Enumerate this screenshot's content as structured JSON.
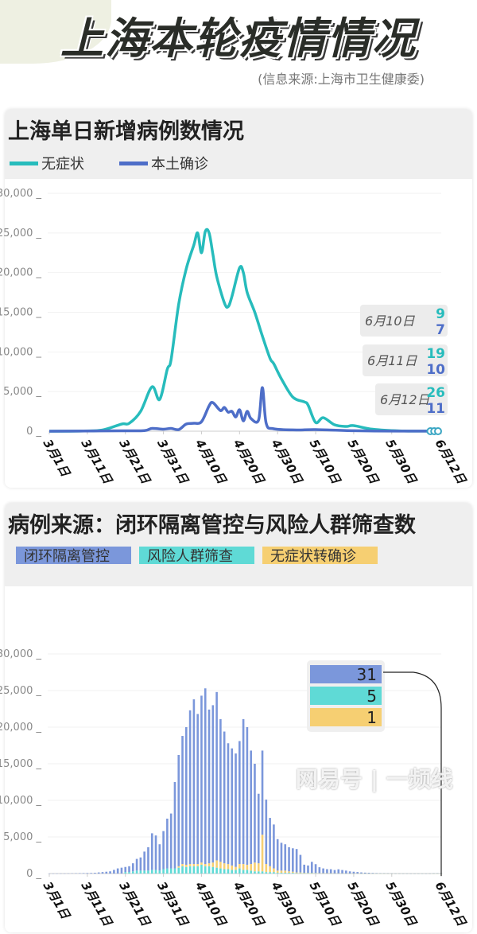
{
  "header": {
    "title": "上海本轮疫情情况",
    "source": "(信息来源:上海市卫生健康委)"
  },
  "colors": {
    "asymptomatic": "#27bcbc",
    "confirmed": "#4e6ec8",
    "closed_loop": "#7b97db",
    "screening": "#5fdad6",
    "converted": "#f6cf72"
  },
  "chart1": {
    "title": "上海单日新增病例数情况",
    "legend": [
      "无症状",
      "本土确诊"
    ],
    "annotations": [
      {
        "date": "6月10日",
        "asymptomatic": "9",
        "confirmed": "7"
      },
      {
        "date": "6月11日",
        "asymptomatic": "19",
        "confirmed": "10"
      },
      {
        "date": "6月12日",
        "asymptomatic": "26",
        "confirmed": "11"
      }
    ]
  },
  "chart2": {
    "title": "病例来源：闭环隔离管控与风险人群筛查数",
    "legend": [
      "闭环隔离管控",
      "风险人群筛查",
      "无症状转确诊"
    ],
    "callout": [
      "31",
      "5",
      "1"
    ]
  },
  "watermark": "网易号 | 一频线",
  "chart_data": [
    {
      "type": "line",
      "title": "上海单日新增病例数情况",
      "ylim": [
        0,
        30000
      ],
      "yticks": [
        "30,000",
        "25,000",
        "20,000",
        "15,000",
        "10,000",
        "5,000",
        "0"
      ],
      "xticks": [
        "3月1日",
        "3月11日",
        "3月21日",
        "3月31日",
        "4月10日",
        "4月20日",
        "4月30日",
        "5月10日",
        "5月20日",
        "5月30日",
        "6月12日"
      ],
      "grid": true,
      "legend_position": "top-left",
      "series": [
        {
          "name": "无症状",
          "points": [
            [
              "3-1",
              0
            ],
            [
              "3-10",
              30
            ],
            [
              "3-15",
              150
            ],
            [
              "3-20",
              900
            ],
            [
              "3-22",
              1000
            ],
            [
              "3-25",
              2500
            ],
            [
              "3-28",
              5600
            ],
            [
              "3-30",
              4000
            ],
            [
              "4-1",
              7800
            ],
            [
              "4-2",
              9000
            ],
            [
              "4-4",
              16000
            ],
            [
              "4-6",
              20500
            ],
            [
              "4-8",
              23500
            ],
            [
              "4-9",
              25000
            ],
            [
              "4-10",
              22500
            ],
            [
              "4-11",
              25200
            ],
            [
              "4-12",
              25000
            ],
            [
              "4-13",
              22300
            ],
            [
              "4-14",
              19500
            ],
            [
              "4-16",
              16200
            ],
            [
              "4-17",
              15700
            ],
            [
              "4-18",
              17000
            ],
            [
              "4-20",
              20600
            ],
            [
              "4-21",
              20000
            ],
            [
              "4-22",
              17500
            ],
            [
              "4-24",
              15000
            ],
            [
              "4-26",
              12000
            ],
            [
              "4-28",
              9200
            ],
            [
              "4-29",
              8500
            ],
            [
              "5-1",
              6600
            ],
            [
              "5-4",
              4300
            ],
            [
              "5-7",
              3700
            ],
            [
              "5-8",
              3300
            ],
            [
              "5-10",
              1100
            ],
            [
              "5-12",
              1700
            ],
            [
              "5-15",
              800
            ],
            [
              "5-18",
              600
            ],
            [
              "5-20",
              700
            ],
            [
              "5-25",
              250
            ],
            [
              "6-1",
              40
            ],
            [
              "6-10",
              9
            ],
            [
              "6-11",
              19
            ],
            [
              "6-12",
              26
            ]
          ]
        },
        {
          "name": "本土确诊",
          "points": [
            [
              "3-1",
              0
            ],
            [
              "3-20",
              50
            ],
            [
              "3-26",
              80
            ],
            [
              "3-28",
              350
            ],
            [
              "3-31",
              250
            ],
            [
              "4-2",
              350
            ],
            [
              "4-4",
              200
            ],
            [
              "4-6",
              900
            ],
            [
              "4-8",
              1000
            ],
            [
              "4-10",
              1200
            ],
            [
              "4-12",
              3200
            ],
            [
              "4-13",
              3600
            ],
            [
              "4-15",
              2600
            ],
            [
              "4-16",
              3000
            ],
            [
              "4-17",
              2400
            ],
            [
              "4-18",
              2500
            ],
            [
              "4-19",
              1800
            ],
            [
              "4-20",
              2700
            ],
            [
              "4-21",
              1300
            ],
            [
              "4-22",
              2500
            ],
            [
              "4-23",
              1600
            ],
            [
              "4-25",
              1400
            ],
            [
              "4-26",
              5500
            ],
            [
              "4-27",
              1000
            ],
            [
              "4-29",
              300
            ],
            [
              "5-5",
              150
            ],
            [
              "5-10",
              200
            ],
            [
              "5-20",
              60
            ],
            [
              "6-1",
              10
            ],
            [
              "6-10",
              7
            ],
            [
              "6-11",
              10
            ],
            [
              "6-12",
              11
            ]
          ]
        }
      ]
    },
    {
      "type": "bar",
      "stacked": true,
      "title": "病例来源：闭环隔离管控与风险人群筛查数",
      "ylim": [
        0,
        30000
      ],
      "yticks": [
        "30,000",
        "25,000",
        "20,000",
        "15,000",
        "10,000",
        "5,000",
        "0"
      ],
      "xticks": [
        "3月1日",
        "3月11日",
        "3月21日",
        "3月31日",
        "4月10日",
        "4月20日",
        "4月30日",
        "5月10日",
        "5月20日",
        "5月30日",
        "6月12日"
      ],
      "start_date": "3-1",
      "series": [
        {
          "name": "闭环隔离管控",
          "values": [
            2,
            3,
            5,
            10,
            10,
            20,
            30,
            40,
            50,
            60,
            70,
            80,
            100,
            150,
            200,
            250,
            300,
            500,
            700,
            800,
            700,
            800,
            1100,
            1600,
            1800,
            2600,
            3200,
            5000,
            4700,
            3600,
            5200,
            6800,
            7500,
            11800,
            15200,
            17500,
            18800,
            21000,
            22500,
            20500,
            22800,
            24000,
            21000,
            21500,
            23000,
            19500,
            18000,
            16500,
            16000,
            15500,
            16800,
            19800,
            18800,
            15500,
            13500,
            9500,
            11500,
            8800,
            6600,
            6000,
            4300,
            3800,
            3600,
            3300,
            3200,
            3200,
            2400,
            1100,
            1000,
            1500,
            1200,
            800,
            650,
            550,
            550,
            450,
            550,
            450,
            380,
            280,
            230,
            190,
            140,
            110,
            90,
            70,
            50,
            35,
            25,
            18,
            12,
            10,
            10,
            8,
            6,
            5,
            5,
            4,
            4,
            3,
            6,
            20,
            28,
            31
          ]
        },
        {
          "name": "风险人群筛查",
          "values": [
            0,
            0,
            0,
            0,
            0,
            0,
            0,
            0,
            0,
            0,
            0,
            0,
            0,
            0,
            0,
            0,
            0,
            0,
            0,
            0,
            200,
            200,
            300,
            400,
            400,
            400,
            400,
            500,
            500,
            400,
            600,
            700,
            700,
            700,
            800,
            1000,
            900,
            1000,
            1000,
            1000,
            1200,
            1000,
            1000,
            900,
            800,
            700,
            600,
            600,
            500,
            500,
            700,
            500,
            500,
            400,
            300,
            300,
            300,
            200,
            200,
            200,
            100,
            100,
            100,
            100,
            100,
            50,
            50,
            50,
            50,
            50,
            40,
            30,
            30,
            30,
            20,
            20,
            20,
            20,
            10,
            10,
            10,
            10,
            10,
            10,
            10,
            5,
            5,
            5,
            5,
            5,
            2,
            1,
            1,
            1,
            1,
            1,
            1,
            1,
            1,
            1,
            3,
            4,
            5,
            5
          ]
        },
        {
          "name": "无症状转确诊",
          "values": [
            0,
            0,
            0,
            0,
            0,
            0,
            0,
            0,
            0,
            0,
            0,
            0,
            0,
            0,
            0,
            0,
            0,
            0,
            0,
            0,
            0,
            0,
            0,
            0,
            0,
            0,
            0,
            0,
            0,
            0,
            0,
            0,
            0,
            0,
            200,
            300,
            300,
            300,
            300,
            300,
            300,
            300,
            400,
            600,
            1000,
            900,
            800,
            700,
            600,
            400,
            600,
            800,
            700,
            900,
            1200,
            1100,
            5000,
            1100,
            800,
            500,
            300,
            300,
            300,
            200,
            150,
            100,
            100,
            60,
            50,
            50,
            40,
            30,
            20,
            20,
            20,
            10,
            10,
            10,
            10,
            5,
            5,
            5,
            5,
            3,
            3,
            2,
            2,
            1,
            1,
            1,
            1,
            1,
            1,
            1,
            1,
            1,
            1,
            1,
            1,
            1,
            1,
            1,
            1,
            1
          ]
        }
      ]
    }
  ]
}
